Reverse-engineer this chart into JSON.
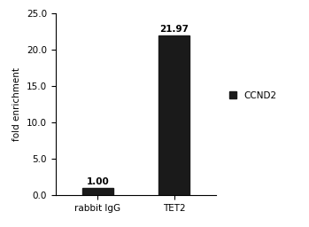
{
  "categories": [
    "rabbit IgG",
    "TET2"
  ],
  "values": [
    1.0,
    21.97
  ],
  "bar_color": "#1a1a1a",
  "bar_labels": [
    "1.00",
    "21.97"
  ],
  "ylabel": "fold enrichment",
  "ylim": [
    0,
    25.0
  ],
  "yticks": [
    0.0,
    5.0,
    10.0,
    15.0,
    20.0,
    25.0
  ],
  "legend_label": "CCND2",
  "legend_color": "#1a1a1a",
  "bar_width": 0.4,
  "label_fontsize": 7.5,
  "tick_fontsize": 7.5,
  "ylabel_fontsize": 7.5,
  "annotation_fontsize": 7.5,
  "figsize": [
    3.49,
    2.56
  ],
  "dpi": 100
}
